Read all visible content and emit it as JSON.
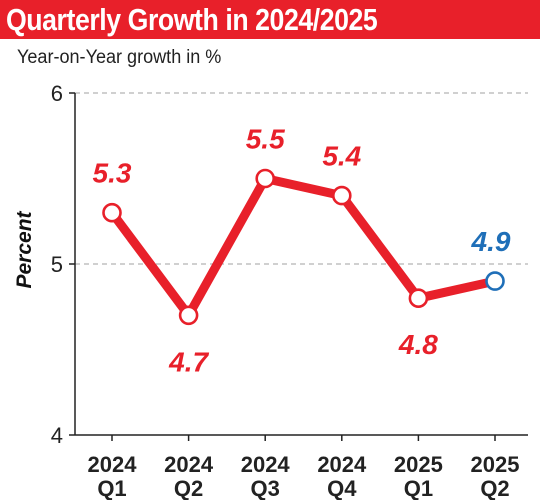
{
  "header": {
    "title": "Quarterly Growth in 2024/2025",
    "subtitle": "Year-on-Year growth in %"
  },
  "colors": {
    "title_bg": "#e8202a",
    "line": "#e8202a",
    "last_point": "#1f6fb8",
    "grid": "#b5b5b5"
  },
  "chart_data": {
    "type": "line",
    "title": "Quarterly Growth in 2024/2025",
    "subtitle": "Year-on-Year growth in %",
    "xlabel": "",
    "ylabel": "Percent",
    "categories": [
      [
        "2024",
        "Q1"
      ],
      [
        "2024",
        "Q2"
      ],
      [
        "2024",
        "Q3"
      ],
      [
        "2024",
        "Q4"
      ],
      [
        "2025",
        "Q1"
      ],
      [
        "2025",
        "Q2"
      ]
    ],
    "series": [
      {
        "values": [
          5.3,
          4.7,
          5.5,
          5.4,
          4.8,
          4.9
        ]
      }
    ],
    "data_labels": [
      "5.3",
      "4.7",
      "5.5",
      "5.4",
      "4.8",
      "4.9"
    ],
    "highlight_last_point": true,
    "ylim": [
      4,
      6
    ],
    "yticks": [
      "4",
      "5",
      "6"
    ],
    "grid": "horizontal dashed at 5 and 6",
    "legend": "none"
  }
}
